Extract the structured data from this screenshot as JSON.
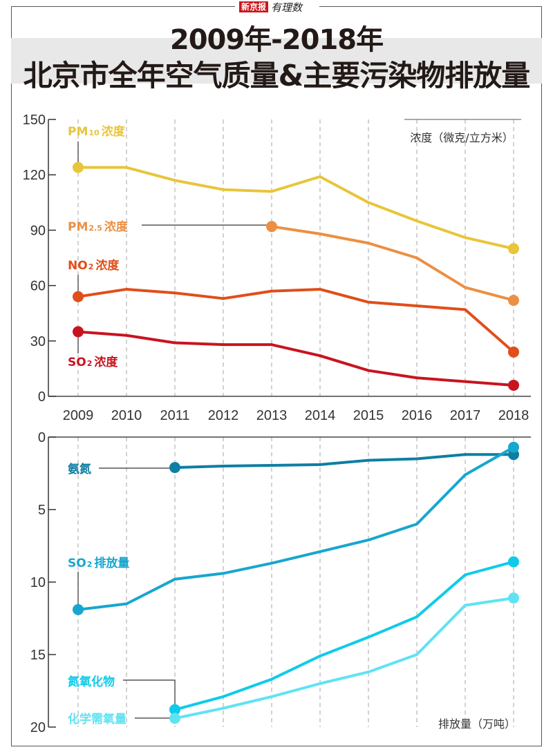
{
  "brand": {
    "name": "新京报",
    "column": "有理数"
  },
  "header": {
    "title_line1": "2009年-2018年",
    "title_line2": "北京市全年空气质量&主要污染物排放量"
  },
  "chart_data": [
    {
      "type": "line",
      "title": "北京市全年空气质量",
      "unit_label": "浓度（微克/立方米）",
      "xlabel": "",
      "ylabel": "浓度（微克/立方米）",
      "x": [
        "2009",
        "2010",
        "2011",
        "2012",
        "2013",
        "2014",
        "2015",
        "2016",
        "2017",
        "2018"
      ],
      "yticks": [
        0,
        30,
        60,
        90,
        120,
        150
      ],
      "ylim": [
        0,
        150
      ],
      "grid": "vertical-dashed",
      "series": [
        {
          "name": "PM10浓度",
          "label_main": "PM",
          "label_sub": "10",
          "label_tail": "浓度",
          "color": "#e8c53a",
          "values": [
            124,
            124,
            117,
            112,
            111,
            119,
            105,
            95,
            86,
            80
          ]
        },
        {
          "name": "PM2.5浓度",
          "label_main": "PM",
          "label_sub": "2.5",
          "label_tail": "浓度",
          "color": "#ec8f42",
          "values": [
            null,
            null,
            null,
            null,
            92,
            88,
            83,
            75,
            59,
            52
          ]
        },
        {
          "name": "NO2浓度",
          "label_main": "NO",
          "label_sub": "2",
          "label_tail": "浓度",
          "color": "#e04e1a",
          "values": [
            54,
            58,
            56,
            53,
            57,
            58,
            51,
            49,
            47,
            24
          ]
        },
        {
          "name": "SO2浓度",
          "label_main": "SO",
          "label_sub": "2",
          "label_tail": "浓度",
          "color": "#c8141f",
          "values": [
            35,
            33,
            29,
            28,
            28,
            22,
            14,
            10,
            8,
            6
          ]
        }
      ]
    },
    {
      "type": "line",
      "title": "北京市主要污染物排放量",
      "unit_label": "排放量（万吨）",
      "xlabel": "",
      "ylabel": "排放量（万吨）",
      "x": [
        "2009",
        "2010",
        "2011",
        "2012",
        "2013",
        "2014",
        "2015",
        "2016",
        "2017",
        "2018"
      ],
      "yticks": [
        0,
        5,
        10,
        15,
        20
      ],
      "ylim": [
        0,
        20
      ],
      "y_inverted": true,
      "grid": "vertical-dashed",
      "series": [
        {
          "name": "氨氮",
          "label_main": "氨氮",
          "label_sub": "",
          "label_tail": "",
          "color": "#0e7ea3",
          "values": [
            null,
            null,
            2.1,
            2.0,
            1.95,
            1.9,
            1.6,
            1.5,
            1.2,
            1.2
          ]
        },
        {
          "name": "SO2排放量",
          "label_main": "SO",
          "label_sub": "2",
          "label_tail": "排放量",
          "color": "#17a6cf",
          "values": [
            11.9,
            11.5,
            9.8,
            9.4,
            8.7,
            7.9,
            7.1,
            6.0,
            2.6,
            0.7
          ]
        },
        {
          "name": "氮氧化物",
          "label_main": "氮氧化物",
          "label_sub": "",
          "label_tail": "",
          "color": "#0fcbea",
          "values": [
            null,
            null,
            18.8,
            17.9,
            16.7,
            15.1,
            13.8,
            12.4,
            9.5,
            8.6
          ]
        },
        {
          "name": "化学需氧量",
          "label_main": "化学需氧量",
          "label_sub": "",
          "label_tail": "",
          "color": "#5fe3f3",
          "values": [
            null,
            null,
            19.4,
            18.7,
            17.9,
            17.0,
            16.2,
            15.0,
            11.6,
            11.1
          ]
        }
      ]
    }
  ]
}
